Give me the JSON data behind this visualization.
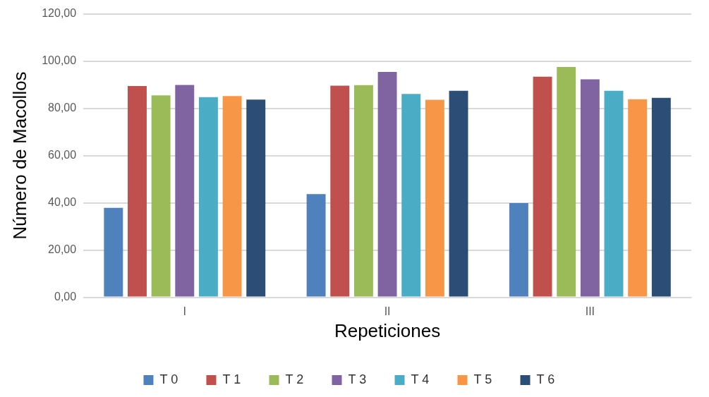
{
  "chart_data": {
    "type": "bar",
    "xlabel": "Repeticiones",
    "ylabel": "Número de Macollos",
    "categories": [
      "I",
      "II",
      "III"
    ],
    "series": [
      {
        "name": "T 0",
        "color": "#4f81bd",
        "values": [
          37.9,
          43.7,
          39.9
        ]
      },
      {
        "name": "T 1",
        "color": "#c0504d",
        "values": [
          89.4,
          89.6,
          93.4
        ]
      },
      {
        "name": "T 2",
        "color": "#9bbb59",
        "values": [
          85.5,
          89.8,
          97.5
        ]
      },
      {
        "name": "T 3",
        "color": "#8064a2",
        "values": [
          89.9,
          95.4,
          92.3
        ]
      },
      {
        "name": "T 4",
        "color": "#4bacc6",
        "values": [
          84.7,
          86.1,
          87.4
        ]
      },
      {
        "name": "T 5",
        "color": "#f79646",
        "values": [
          85.2,
          83.6,
          83.8
        ]
      },
      {
        "name": "T 6",
        "color": "#2c4d75",
        "values": [
          83.7,
          87.4,
          84.4
        ]
      }
    ],
    "ylim": [
      0,
      120
    ],
    "yticks": [
      {
        "value": 0,
        "label": "0,00"
      },
      {
        "value": 20,
        "label": "20,00"
      },
      {
        "value": 40,
        "label": "40,00"
      },
      {
        "value": 60,
        "label": "60,00"
      },
      {
        "value": 80,
        "label": "80,00"
      },
      {
        "value": 100,
        "label": "100,00"
      },
      {
        "value": 120,
        "label": "120,00"
      }
    ],
    "grid": "y",
    "legend": "bottom"
  }
}
